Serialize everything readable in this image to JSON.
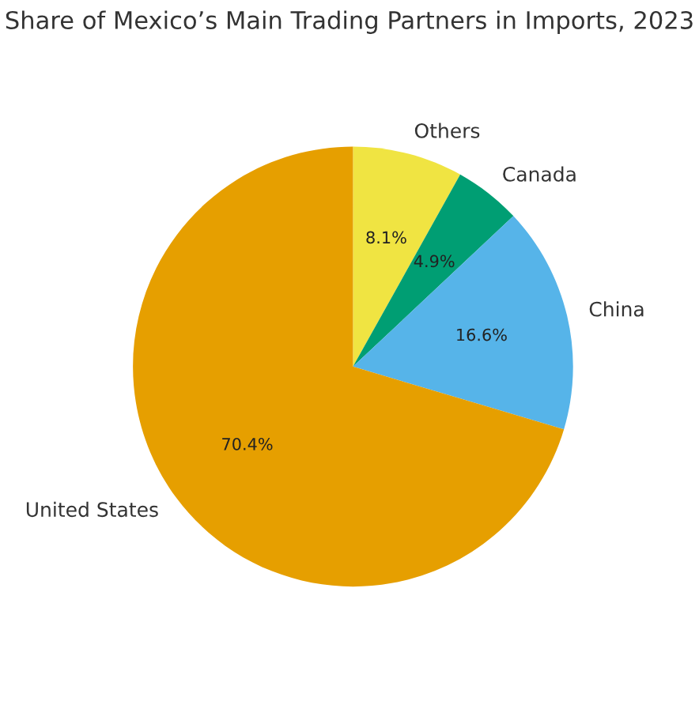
{
  "chart_data": {
    "type": "pie",
    "title": "Share of Mexico’s Main Trading Partners in Imports, 2023",
    "categories": [
      "Others",
      "Canada",
      "China",
      "United States"
    ],
    "values": [
      8.1,
      4.9,
      16.6,
      70.4
    ],
    "colors": [
      "#f0e442",
      "#009e73",
      "#56b4e9",
      "#e69f00"
    ],
    "value_labels": [
      "8.1%",
      "4.9%",
      "16.6%",
      "70.4%"
    ]
  }
}
